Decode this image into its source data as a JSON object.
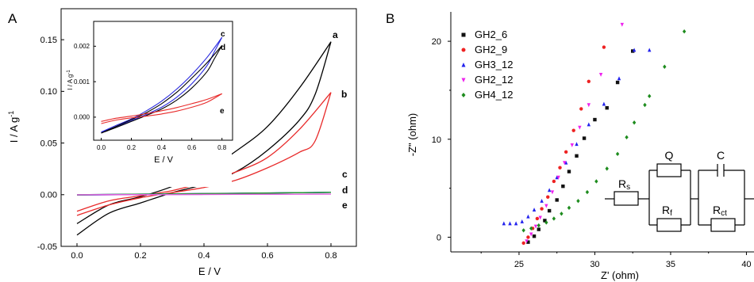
{
  "chart_data": [
    {
      "panel_label": "A",
      "type": "line",
      "xlabel": "E / V",
      "ylabel": "I / A g",
      "ylabel_sup": "-1",
      "xlim": [
        -0.05,
        0.88
      ],
      "ylim": [
        -0.05,
        0.18
      ],
      "xticks": [
        "0.0",
        "0.2",
        "0.4",
        "0.6",
        "0.8"
      ],
      "yticks": [
        "-0.05",
        "0.00",
        "0.05",
        "0.10",
        "0.15"
      ],
      "series": [
        {
          "label": "a",
          "color": "#000000",
          "upper": [
            [
              0,
              -0.028
            ],
            [
              0.1,
              -0.01
            ],
            [
              0.2,
              -0.002
            ],
            [
              0.3,
              0.008
            ],
            [
              0.4,
              0.022
            ],
            [
              0.5,
              0.042
            ],
            [
              0.6,
              0.066
            ],
            [
              0.7,
              0.103
            ],
            [
              0.8,
              0.148
            ]
          ],
          "lower": [
            [
              0.8,
              0.148
            ],
            [
              0.75,
              0.097
            ],
            [
              0.7,
              0.072
            ],
            [
              0.6,
              0.043
            ],
            [
              0.5,
              0.022
            ],
            [
              0.4,
              0.01
            ],
            [
              0.3,
              0.002
            ],
            [
              0.2,
              -0.008
            ],
            [
              0.1,
              -0.018
            ],
            [
              0,
              -0.039
            ]
          ]
        },
        {
          "label": "b",
          "color": "#e82a2a",
          "upper": [
            [
              0,
              -0.016
            ],
            [
              0.1,
              -0.006
            ],
            [
              0.2,
              -0.001
            ],
            [
              0.3,
              0.004
            ],
            [
              0.4,
              0.012
            ],
            [
              0.5,
              0.022
            ],
            [
              0.6,
              0.036
            ],
            [
              0.7,
              0.063
            ],
            [
              0.8,
              0.099
            ]
          ],
          "lower": [
            [
              0.8,
              0.099
            ],
            [
              0.75,
              0.052
            ],
            [
              0.7,
              0.041
            ],
            [
              0.6,
              0.026
            ],
            [
              0.5,
              0.014
            ],
            [
              0.4,
              0.007
            ],
            [
              0.3,
              0.002
            ],
            [
              0.2,
              -0.003
            ],
            [
              0.1,
              -0.01
            ],
            [
              0,
              -0.02
            ]
          ]
        },
        {
          "label": "c",
          "color": "#2a2ae0",
          "upper": [
            [
              0,
              0.0
            ],
            [
              0.8,
              0.0023
            ]
          ],
          "lower": [
            [
              0.8,
              0.0023
            ],
            [
              0,
              -0.0005
            ]
          ]
        },
        {
          "label": "d",
          "color": "#1f9e2a",
          "upper": [
            [
              0,
              0.0
            ],
            [
              0.8,
              0.0022
            ]
          ],
          "lower": [
            [
              0.8,
              0.0022
            ],
            [
              0,
              -0.0003
            ]
          ]
        },
        {
          "label": "e",
          "color": "#e060e0",
          "upper": [
            [
              0,
              -0.0001
            ],
            [
              0.8,
              0.0006
            ]
          ],
          "lower": [
            [
              0.8,
              0.0006
            ],
            [
              0,
              -0.0002
            ]
          ]
        }
      ],
      "inset": {
        "type": "line",
        "xlabel": "E / V",
        "ylabel": "I / A g",
        "ylabel_sup": "-1",
        "xlim": [
          -0.05,
          0.87
        ],
        "ylim": [
          -0.00065,
          0.0027
        ],
        "xticks": [
          "0.0",
          "0.2",
          "0.4",
          "0.6",
          "0.8"
        ],
        "yticks": [
          "0.000",
          "0.001",
          "0.002"
        ],
        "series": [
          {
            "label": "c",
            "color": "#2a2ae0",
            "upper": [
              [
                0,
                -0.00042
              ],
              [
                0.1,
                -0.00023
              ],
              [
                0.2,
                -5e-05
              ],
              [
                0.3,
                0.00018
              ],
              [
                0.4,
                0.00045
              ],
              [
                0.5,
                0.00079
              ],
              [
                0.6,
                0.0012
              ],
              [
                0.7,
                0.00168
              ],
              [
                0.8,
                0.00225
              ]
            ],
            "lower": [
              [
                0.8,
                0.00225
              ],
              [
                0.75,
                0.00185
              ],
              [
                0.7,
                0.00145
              ],
              [
                0.6,
                0.00094
              ],
              [
                0.5,
                0.00056
              ],
              [
                0.4,
                0.00028
              ],
              [
                0.3,
                8e-05
              ],
              [
                0.2,
                -0.0001
              ],
              [
                0.1,
                -0.00027
              ],
              [
                0,
                -0.00042
              ]
            ]
          },
          {
            "label": "d",
            "color": "#000000",
            "upper": [
              [
                0,
                -0.00045
              ],
              [
                0.1,
                -0.00026
              ],
              [
                0.2,
                -7e-05
              ],
              [
                0.3,
                0.00013
              ],
              [
                0.4,
                0.00038
              ],
              [
                0.5,
                0.0007
              ],
              [
                0.6,
                0.0011
              ],
              [
                0.7,
                0.00153
              ],
              [
                0.8,
                0.00202
              ]
            ],
            "lower": [
              [
                0.8,
                0.00202
              ],
              [
                0.75,
                0.00165
              ],
              [
                0.7,
                0.00128
              ],
              [
                0.6,
                0.00082
              ],
              [
                0.5,
                0.00048
              ],
              [
                0.4,
                0.00023
              ],
              [
                0.3,
                5e-05
              ],
              [
                0.2,
                -0.00012
              ],
              [
                0.1,
                -0.00029
              ],
              [
                0,
                -0.00045
              ]
            ]
          },
          {
            "label": "e",
            "color": "#e82a2a",
            "upper": [
              [
                0,
                -0.00012
              ],
              [
                0.1,
                -3e-05
              ],
              [
                0.2,
                3e-05
              ],
              [
                0.3,
                0.0001
              ],
              [
                0.4,
                0.00018
              ],
              [
                0.5,
                0.00027
              ],
              [
                0.6,
                0.00038
              ],
              [
                0.7,
                0.0005
              ],
              [
                0.8,
                0.00066
              ]
            ],
            "lower": [
              [
                0.8,
                0.00066
              ],
              [
                0.7,
                0.00042
              ],
              [
                0.6,
                0.00028
              ],
              [
                0.5,
                0.00017
              ],
              [
                0.4,
                9e-05
              ],
              [
                0.3,
                3e-05
              ],
              [
                0.2,
                -2e-05
              ],
              [
                0.1,
                -8e-05
              ],
              [
                0,
                -0.00018
              ]
            ]
          }
        ]
      }
    },
    {
      "panel_label": "B",
      "type": "scatter",
      "xlabel": "Z' (ohm)",
      "ylabel": "-Z\" (ohm)",
      "xlim": [
        20.5,
        40.5
      ],
      "ylim": [
        -1.5,
        23
      ],
      "xticks": [
        "25",
        "30",
        "35",
        "40"
      ],
      "yticks": [
        "0",
        "10",
        "20"
      ],
      "legend_position": "top-left",
      "series": [
        {
          "name": "GH2_6",
          "marker": "square",
          "color": "#111111",
          "points": [
            [
              25.6,
              -0.5
            ],
            [
              26.0,
              0.1
            ],
            [
              26.3,
              0.8
            ],
            [
              26.7,
              1.7
            ],
            [
              27.0,
              2.7
            ],
            [
              27.5,
              3.8
            ],
            [
              27.9,
              5.2
            ],
            [
              28.3,
              6.7
            ],
            [
              28.8,
              8.3
            ],
            [
              29.3,
              10.1
            ],
            [
              30.0,
              12.0
            ],
            [
              30.8,
              13.2
            ],
            [
              31.5,
              15.8
            ],
            [
              32.5,
              19.0
            ]
          ]
        },
        {
          "name": "GH2_9",
          "marker": "circle",
          "color": "#ee2222",
          "points": [
            [
              25.3,
              -0.6
            ],
            [
              25.6,
              0.0
            ],
            [
              25.9,
              0.9
            ],
            [
              26.2,
              1.9
            ],
            [
              26.5,
              2.9
            ],
            [
              26.9,
              4.1
            ],
            [
              27.3,
              5.7
            ],
            [
              27.7,
              7.1
            ],
            [
              28.1,
              8.7
            ],
            [
              28.6,
              10.9
            ],
            [
              29.1,
              13.1
            ],
            [
              29.6,
              15.9
            ],
            [
              30.6,
              19.4
            ]
          ]
        },
        {
          "name": "GH3_12",
          "marker": "triangle",
          "color": "#2222ee",
          "points": [
            [
              24.0,
              1.4
            ],
            [
              24.4,
              1.4
            ],
            [
              24.8,
              1.4
            ],
            [
              25.2,
              1.6
            ],
            [
              25.6,
              2.1
            ],
            [
              26.0,
              2.8
            ],
            [
              26.5,
              3.7
            ],
            [
              27.0,
              4.8
            ],
            [
              27.5,
              6.1
            ],
            [
              28.1,
              7.6
            ],
            [
              28.8,
              9.5
            ],
            [
              29.6,
              11.5
            ],
            [
              30.6,
              13.6
            ],
            [
              31.6,
              16.2
            ],
            [
              32.6,
              19.1
            ],
            [
              33.6,
              19.1
            ]
          ]
        },
        {
          "name": "GH2_12",
          "marker": "triangle-down",
          "color": "#ee22ee",
          "points": [
            [
              25.5,
              -0.4
            ],
            [
              25.8,
              0.3
            ],
            [
              26.1,
              1.1
            ],
            [
              26.4,
              2.0
            ],
            [
              26.8,
              3.2
            ],
            [
              27.2,
              4.6
            ],
            [
              27.6,
              6.1
            ],
            [
              28.0,
              7.6
            ],
            [
              28.5,
              9.4
            ],
            [
              29.0,
              11.2
            ],
            [
              29.6,
              13.5
            ],
            [
              30.4,
              16.6
            ],
            [
              31.8,
              21.7
            ]
          ]
        },
        {
          "name": "GH4_12",
          "marker": "diamond",
          "color": "#1e8c1e",
          "points": [
            [
              25.3,
              0.7
            ],
            [
              25.8,
              0.9
            ],
            [
              26.3,
              1.2
            ],
            [
              26.8,
              1.5
            ],
            [
              27.3,
              1.9
            ],
            [
              27.8,
              2.4
            ],
            [
              28.3,
              3.0
            ],
            [
              28.9,
              3.7
            ],
            [
              29.5,
              4.6
            ],
            [
              30.1,
              5.7
            ],
            [
              30.8,
              7.0
            ],
            [
              31.5,
              8.5
            ],
            [
              32.1,
              10.2
            ],
            [
              32.6,
              11.7
            ],
            [
              33.3,
              13.5
            ],
            [
              33.6,
              14.4
            ],
            [
              34.6,
              17.4
            ],
            [
              35.9,
              21.0
            ]
          ]
        }
      ],
      "circuit": {
        "elements": [
          "R",
          "s",
          "Q",
          "R",
          "f",
          "C",
          "R",
          "ct"
        ]
      }
    }
  ]
}
